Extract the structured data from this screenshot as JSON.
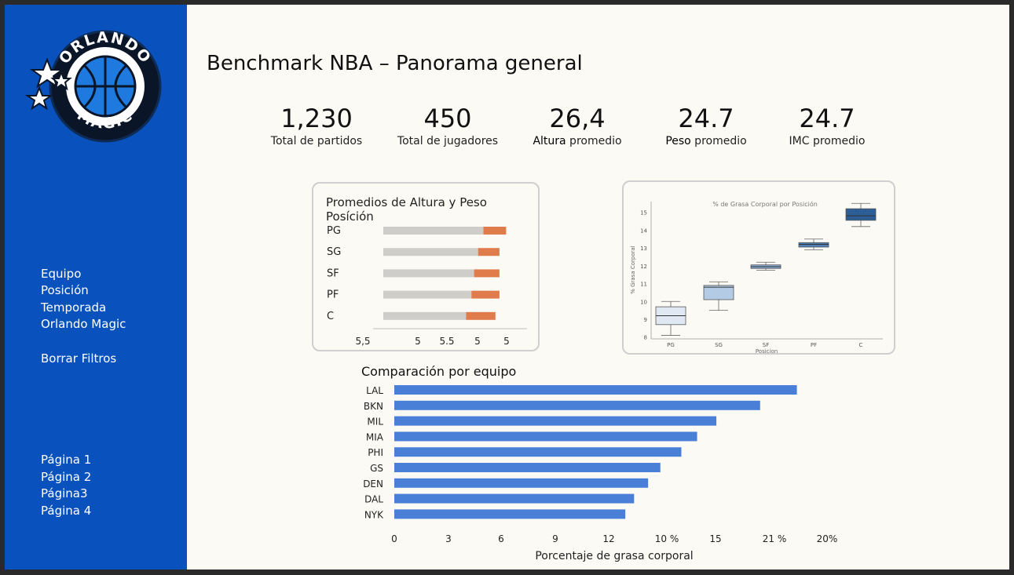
{
  "logo": {
    "top_text": "ORLANDO",
    "bottom_text": "MAGIC"
  },
  "sidebar": {
    "filters": [
      "Equipo",
      "Posición",
      "Temporada",
      "Orlando Magic"
    ],
    "clear_label": "Borrar Filtros",
    "pages": [
      "Página 1",
      "Página 2",
      "Página3",
      "Página 4"
    ]
  },
  "header": {
    "title": "Benchmark NBA – Panorama general"
  },
  "kpis": [
    {
      "value": "1,230",
      "label_bold": "",
      "label": "Total de partidos"
    },
    {
      "value": "450",
      "label_bold": "",
      "label": "Total de jugadores"
    },
    {
      "value": "26,4",
      "label_bold": "Altura",
      "label": " promedio"
    },
    {
      "value": "24.7",
      "label_bold": "Peso",
      "label": " promedio"
    },
    {
      "value": "24.7",
      "label_bold": "",
      "label": "IMC promedio"
    }
  ],
  "colors": {
    "sidebar": "#0952bd",
    "bar_blue": "#4a7fd8",
    "bar_grey": "#cfcdc9",
    "bar_orange": "#e07b4c",
    "box_dark": "#2c5d94",
    "box_light": "#c8d9ec"
  },
  "chart_data": [
    {
      "type": "bar",
      "title": "Promedios de Altura y Peso Posíción",
      "categories": [
        "PG",
        "SG",
        "SF",
        "PF",
        "C"
      ],
      "series": [
        {
          "values": [
            0.75,
            0.71,
            0.68,
            0.66,
            0.62
          ]
        },
        {
          "values": [
            0.17,
            0.16,
            0.19,
            0.21,
            0.22
          ]
        }
      ],
      "x_tick_labels": [
        "5,5",
        "5",
        "5.5",
        "5",
        "5"
      ],
      "stacked": true,
      "orientation": "horizontal"
    },
    {
      "type": "box",
      "title": "% de Grasa Corporal por Posición",
      "categories": [
        "PG",
        "SG",
        "SF",
        "PF",
        "C"
      ],
      "xlabel": "Posicion",
      "ylabel": "% Grasa Corporal",
      "ylim": [
        7.9,
        15.6
      ],
      "yticks": [
        8,
        9,
        10,
        11,
        12,
        13,
        14,
        15
      ],
      "boxes": [
        {
          "whisker_low": 8.1,
          "q1": 8.7,
          "median": 9.2,
          "q3": 9.7,
          "whisker_high": 10.0
        },
        {
          "whisker_low": 9.5,
          "q1": 10.1,
          "median": 10.8,
          "q3": 10.9,
          "whisker_high": 11.1
        },
        {
          "whisker_low": 11.75,
          "q1": 11.85,
          "median": 11.95,
          "q3": 12.05,
          "whisker_high": 12.2
        },
        {
          "whisker_low": 12.9,
          "q1": 13.05,
          "median": 13.2,
          "q3": 13.3,
          "whisker_high": 13.5
        },
        {
          "whisker_low": 14.2,
          "q1": 14.55,
          "median": 14.8,
          "q3": 15.2,
          "whisker_high": 15.5
        }
      ]
    },
    {
      "type": "bar",
      "orientation": "horizontal",
      "title": "Comparación por equipo",
      "xlabel": "Porcentaje de grasa corporal",
      "categories": [
        "LAL",
        "BKN",
        "MIL",
        "MIA",
        "PHI",
        "GS",
        "DEN",
        "DAL",
        "NYK"
      ],
      "values": [
        23.0,
        20.9,
        18.4,
        17.3,
        16.4,
        15.2,
        14.5,
        13.7,
        13.2
      ],
      "x_tick_labels": [
        "0",
        "3",
        "6",
        "9",
        "12",
        "10 %",
        "15",
        "21 %",
        "20%"
      ],
      "xlim": [
        0,
        24.5
      ]
    }
  ]
}
